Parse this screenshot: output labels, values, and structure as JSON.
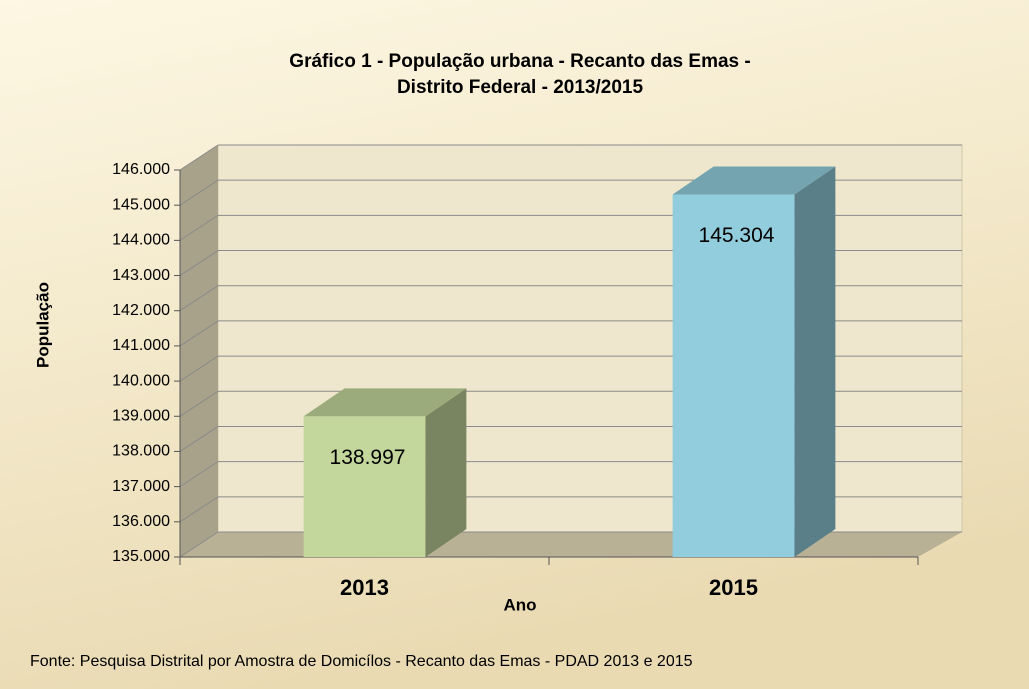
{
  "chart_data": {
    "type": "bar",
    "title": [
      "Gráfico 1 - População urbana - Recanto das Emas -",
      "Distrito Federal - 2013/2015"
    ],
    "x_label": "Ano",
    "y_label": "População",
    "source": "Fonte: Pesquisa Distrital por Amostra de Domicílos  - Recanto das Emas - PDAD  2013 e 2015",
    "categories": [
      "2013",
      "2015"
    ],
    "values": [
      138997,
      145304
    ],
    "value_labels": [
      "138.997",
      "145.304"
    ],
    "colors": [
      "#c3d69b",
      "#92cddd"
    ],
    "ylim": [
      135000,
      146000
    ],
    "yticks": [
      {
        "value": 135000,
        "label": "135.000"
      },
      {
        "value": 136000,
        "label": "136.000"
      },
      {
        "value": 137000,
        "label": "137.000"
      },
      {
        "value": 138000,
        "label": "138.000"
      },
      {
        "value": 139000,
        "label": "139.000"
      },
      {
        "value": 140000,
        "label": "140.000"
      },
      {
        "value": 141000,
        "label": "141.000"
      },
      {
        "value": 142000,
        "label": "142.000"
      },
      {
        "value": 143000,
        "label": "143.000"
      },
      {
        "value": 144000,
        "label": "144.000"
      },
      {
        "value": 145000,
        "label": "145.000"
      },
      {
        "value": 146000,
        "label": "146.000"
      }
    ],
    "grid": true
  }
}
